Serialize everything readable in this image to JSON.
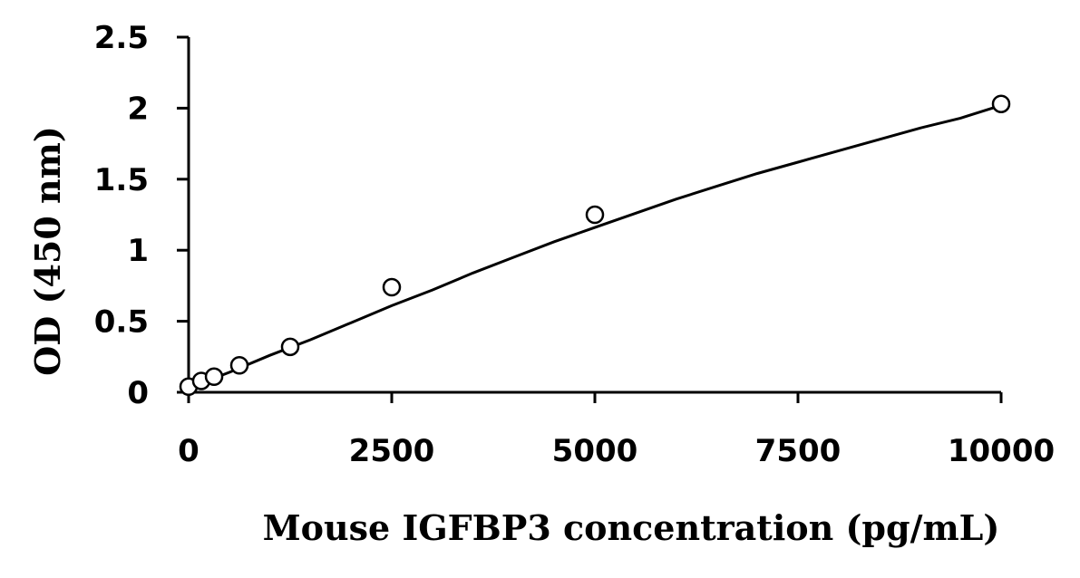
{
  "chart_data": {
    "type": "scatter",
    "title": "",
    "xlabel": "Mouse IGFBP3 concentration (pg/mL)",
    "ylabel": "OD (450 nm)",
    "xlim": [
      0,
      10000
    ],
    "ylim": [
      0,
      2.5
    ],
    "x_ticks": [
      0,
      2500,
      5000,
      7500,
      10000
    ],
    "y_ticks": [
      0,
      0.5,
      1,
      1.5,
      2,
      2.5
    ],
    "x_tick_labels": [
      "0",
      "2500",
      "5000",
      "7500",
      "10000"
    ],
    "y_tick_labels": [
      "0",
      "0.5",
      "1",
      "1.5",
      "2",
      "2.5"
    ],
    "grid": false,
    "legend": "none",
    "series": [
      {
        "points": [
          {
            "x": 0,
            "y": 0.04
          },
          {
            "x": 156,
            "y": 0.08
          },
          {
            "x": 313,
            "y": 0.11
          },
          {
            "x": 625,
            "y": 0.19
          },
          {
            "x": 1250,
            "y": 0.32
          },
          {
            "x": 2500,
            "y": 0.74
          },
          {
            "x": 5000,
            "y": 1.25
          },
          {
            "x": 10000,
            "y": 2.03
          }
        ],
        "fit_curve": [
          {
            "x": 0,
            "y": 0.03
          },
          {
            "x": 500,
            "y": 0.14
          },
          {
            "x": 1000,
            "y": 0.26
          },
          {
            "x": 1500,
            "y": 0.37
          },
          {
            "x": 2000,
            "y": 0.49
          },
          {
            "x": 2500,
            "y": 0.61
          },
          {
            "x": 3000,
            "y": 0.72
          },
          {
            "x": 3500,
            "y": 0.84
          },
          {
            "x": 4000,
            "y": 0.95
          },
          {
            "x": 4500,
            "y": 1.06
          },
          {
            "x": 5000,
            "y": 1.16
          },
          {
            "x": 5500,
            "y": 1.26
          },
          {
            "x": 6000,
            "y": 1.36
          },
          {
            "x": 6500,
            "y": 1.45
          },
          {
            "x": 7000,
            "y": 1.54
          },
          {
            "x": 7500,
            "y": 1.62
          },
          {
            "x": 8000,
            "y": 1.7
          },
          {
            "x": 8500,
            "y": 1.78
          },
          {
            "x": 9000,
            "y": 1.86
          },
          {
            "x": 9500,
            "y": 1.93
          },
          {
            "x": 10000,
            "y": 2.02
          }
        ]
      }
    ]
  }
}
